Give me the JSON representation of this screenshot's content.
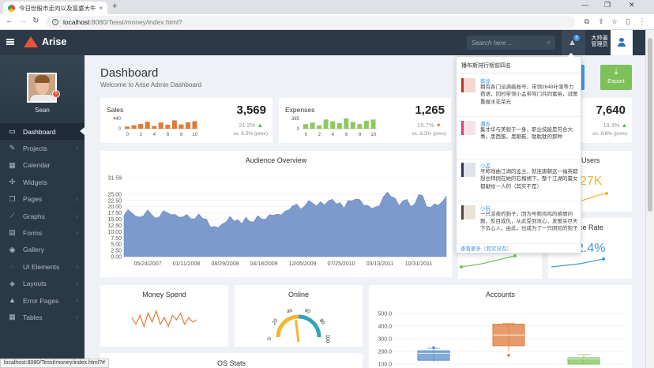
{
  "browser": {
    "tab_title": "今日份股市走向以及富婆大牛",
    "tab_close": "×",
    "new_tab": "+",
    "url_host": "localhost",
    "url_path": ":8080/Tesst/money/index.html?",
    "status_url": "localhost:8080/Tesst/money/index.html?#"
  },
  "header": {
    "brand": "Arise",
    "search_placeholder": "Search here ...",
    "notification_count": "5",
    "user_name_line1": "大帅逼",
    "user_name_line2": "管理员"
  },
  "sidebar": {
    "profile_name": "Sean",
    "avatar_badge": "5",
    "items": [
      {
        "label": "Dashboard",
        "icon": "monitor-icon",
        "glyph": "▭",
        "active": true,
        "arrow": false
      },
      {
        "label": "Projects",
        "icon": "projects-icon",
        "glyph": "✎",
        "active": false,
        "arrow": true
      },
      {
        "label": "Calendar",
        "icon": "calendar-icon",
        "glyph": "▦",
        "active": false,
        "arrow": false
      },
      {
        "label": "Widgets",
        "icon": "widgets-icon",
        "glyph": "✣",
        "active": false,
        "arrow": false
      },
      {
        "label": "Pages",
        "icon": "pages-icon",
        "glyph": "❐",
        "active": false,
        "arrow": true
      },
      {
        "label": "Graphs",
        "icon": "graphs-icon",
        "glyph": "⟋",
        "active": false,
        "arrow": true
      },
      {
        "label": "Forms",
        "icon": "forms-icon",
        "glyph": "▤",
        "active": false,
        "arrow": true
      },
      {
        "label": "Gallery",
        "icon": "camera-icon",
        "glyph": "◉",
        "active": false,
        "arrow": false
      },
      {
        "label": "UI Elements",
        "icon": "elements-icon",
        "glyph": "◌",
        "active": false,
        "arrow": true
      },
      {
        "label": "Layouts",
        "icon": "layouts-icon",
        "glyph": "◈",
        "active": false,
        "arrow": true
      },
      {
        "label": "Error Pages",
        "icon": "warning-icon",
        "glyph": "▲",
        "active": false,
        "arrow": true
      },
      {
        "label": "Tables",
        "icon": "tables-icon",
        "glyph": "▦",
        "active": false,
        "arrow": true
      }
    ],
    "arrow_glyph": "›"
  },
  "page": {
    "title": "Dashboard",
    "subtitle": "Welcome to Arise Admin Dashboard",
    "export_label": "Export",
    "blue_button_fragment": "ks"
  },
  "stats": {
    "sales": {
      "label": "Sales",
      "value": "3,569",
      "pct": "21.2%",
      "prev": "vs. 6.5% (prev)",
      "trend": "up"
    },
    "expenses": {
      "label": "Expenses",
      "value": "1,265",
      "pct": "15.7%",
      "prev": "vs. 8.3% (prev)",
      "trend": "down"
    },
    "fourth": {
      "value": "7,640",
      "pct": "19.3%",
      "prev": "vs. 8.8% (prev)",
      "trend": "up"
    }
  },
  "partial_cards": {
    "users_title": "Users",
    "users_value": "27K",
    "rate_title": "nce Rate",
    "rate_value": "2.4%"
  },
  "notifications": {
    "header": "播布斯排行榜前四名",
    "footer": "查看更多（其实没有）",
    "items": [
      {
        "name": "蔡徐",
        "text": "拥有各门派满级账号，带领2648叶落等力荷语，同时带领小孟带驾门共同富裕，试图重振水花荣光",
        "avatar": "avatar-cai"
      },
      {
        "name": "潘吉",
        "text": "集才华与美貌于一身，职业技能是符合大事，黑西服，黑眼鞋，耽耽耽的那种",
        "avatar": "avatar-pan"
      },
      {
        "name": "小孟",
        "text": "号称戏曲江湖的孟主，就连唐朝这一福英都想也拜倒在她的石榴裙下，整个江湖的臺女都献给一人的（其实不是）",
        "avatar": "avatar-meng"
      },
      {
        "name": "小阮",
        "text": "一只凉夜的狗子，因为号称鸡鸡的感情问题，反目成仇，从此受到攻心，发誓杀尽天下负心人，由此，也成为了一只阴险的狗子",
        "avatar": "avatar-ruan"
      }
    ]
  },
  "cards": {
    "money_spend": "Money Spend",
    "online": "Online",
    "accounts": "Accounts",
    "os_stats": "OS Stats"
  },
  "colors": {
    "sidebar": "#2a3946",
    "header": "#2c3a47",
    "accent_blue": "#3d97e3",
    "area_fill": "#7d9acd",
    "orange": "#e07b39",
    "green": "#7dc15a"
  },
  "chart_data": [
    {
      "type": "bar",
      "name": "sales-sparkline",
      "categories": [
        "0",
        "1",
        "2",
        "3",
        "4",
        "5",
        "6",
        "7",
        "8",
        "9",
        "10"
      ],
      "values": [
        80,
        130,
        180,
        260,
        100,
        230,
        150,
        310,
        160,
        240,
        280
      ],
      "yticks": [
        "440",
        "0"
      ],
      "xticks": [
        "0",
        "2",
        "4",
        "6",
        "8",
        "10"
      ],
      "ylim": [
        0,
        440
      ],
      "color": "#e07b39"
    },
    {
      "type": "bar",
      "name": "expenses-sparkline",
      "categories": [
        "0",
        "1",
        "2",
        "3",
        "4",
        "5",
        "6",
        "7",
        "8",
        "9",
        "10"
      ],
      "values": [
        150,
        200,
        110,
        300,
        240,
        180,
        340,
        220,
        150,
        260,
        300
      ],
      "yticks": [
        "385",
        "0"
      ],
      "xticks": [
        "0",
        "2",
        "4",
        "6",
        "8",
        "10"
      ],
      "ylim": [
        0,
        385
      ],
      "color": "#8dc863"
    },
    {
      "type": "area",
      "title": "Audience Overview",
      "xticks": [
        "05/24/2007",
        "01/11/2008",
        "08/29/2008",
        "04/18/2009",
        "12/05/2009",
        "07/25/2010",
        "03/13/2011",
        "10/31/2011"
      ],
      "yticks": [
        "31.59",
        "25.00",
        "22.50",
        "20.00",
        "17.50",
        "15.00",
        "12.50",
        "10.00",
        "7.50",
        "5.00",
        "2.50",
        "0.00"
      ],
      "ylim": [
        0,
        31.59
      ],
      "values": [
        16.5,
        18.8,
        17.5,
        16.2,
        15.8,
        16.4,
        18.7,
        16.9,
        15.4,
        15.9,
        18.4,
        17.6,
        16.8,
        16.9,
        15.8,
        15.9,
        16.9,
        15.2,
        15.1,
        17.1,
        15.3,
        15.0,
        11.8,
        12.1,
        11.6,
        13.1,
        13.9,
        16.1,
        14.2,
        14.8,
        13.1,
        15.8,
        14.1,
        13.9,
        16.4,
        15.1,
        14.9,
        16.8,
        16.6,
        17.0,
        16.7,
        18.2,
        18.8,
        20.4,
        21.0,
        19.0,
        20.3,
        22.5,
        21.4,
        20.3,
        22.0,
        20.6,
        22.3,
        23.0,
        21.1,
        21.6,
        19.3,
        22.5,
        22.3,
        23.1,
        22.8,
        20.6,
        20.5,
        19.3,
        19.8,
        20.4,
        24.0,
        25.8,
        24.0,
        23.4,
        20.4,
        22.4,
        22.9,
        20.0,
        21.1,
        24.9,
        24.4,
        20.0,
        19.7,
        21.1,
        20.6,
        22.0,
        24.2
      ],
      "color": "#7d9acd"
    },
    {
      "type": "line",
      "title": "Money Spend",
      "values": [
        6,
        3,
        7,
        2,
        8,
        4,
        9,
        3,
        6,
        2,
        7,
        5,
        8,
        3,
        6,
        4,
        5
      ],
      "color": "#e07b39"
    },
    {
      "type": "gauge",
      "title": "Online",
      "ticks": [
        "0",
        "20",
        "40",
        "60",
        "80",
        "100"
      ],
      "value": 45
    },
    {
      "type": "box",
      "title": "Accounts",
      "yticks": [
        "500.0",
        "400.0",
        "300.0",
        "200.0",
        "100.0"
      ],
      "ylim": [
        100,
        500
      ],
      "boxes": [
        {
          "q1": 130,
          "median": 185,
          "q3": 205,
          "min": 115,
          "max": 225,
          "outlier": 230,
          "color": "#5b8fcc"
        },
        {
          "q1": 245,
          "median": 330,
          "q3": 415,
          "min": 205,
          "max": 420,
          "outlier": 170,
          "color": "#e07b39"
        },
        {
          "q1": 100,
          "median": 140,
          "q3": 150,
          "min": 100,
          "max": 175,
          "outlier": null,
          "color": "#7dc15a"
        }
      ]
    }
  ]
}
